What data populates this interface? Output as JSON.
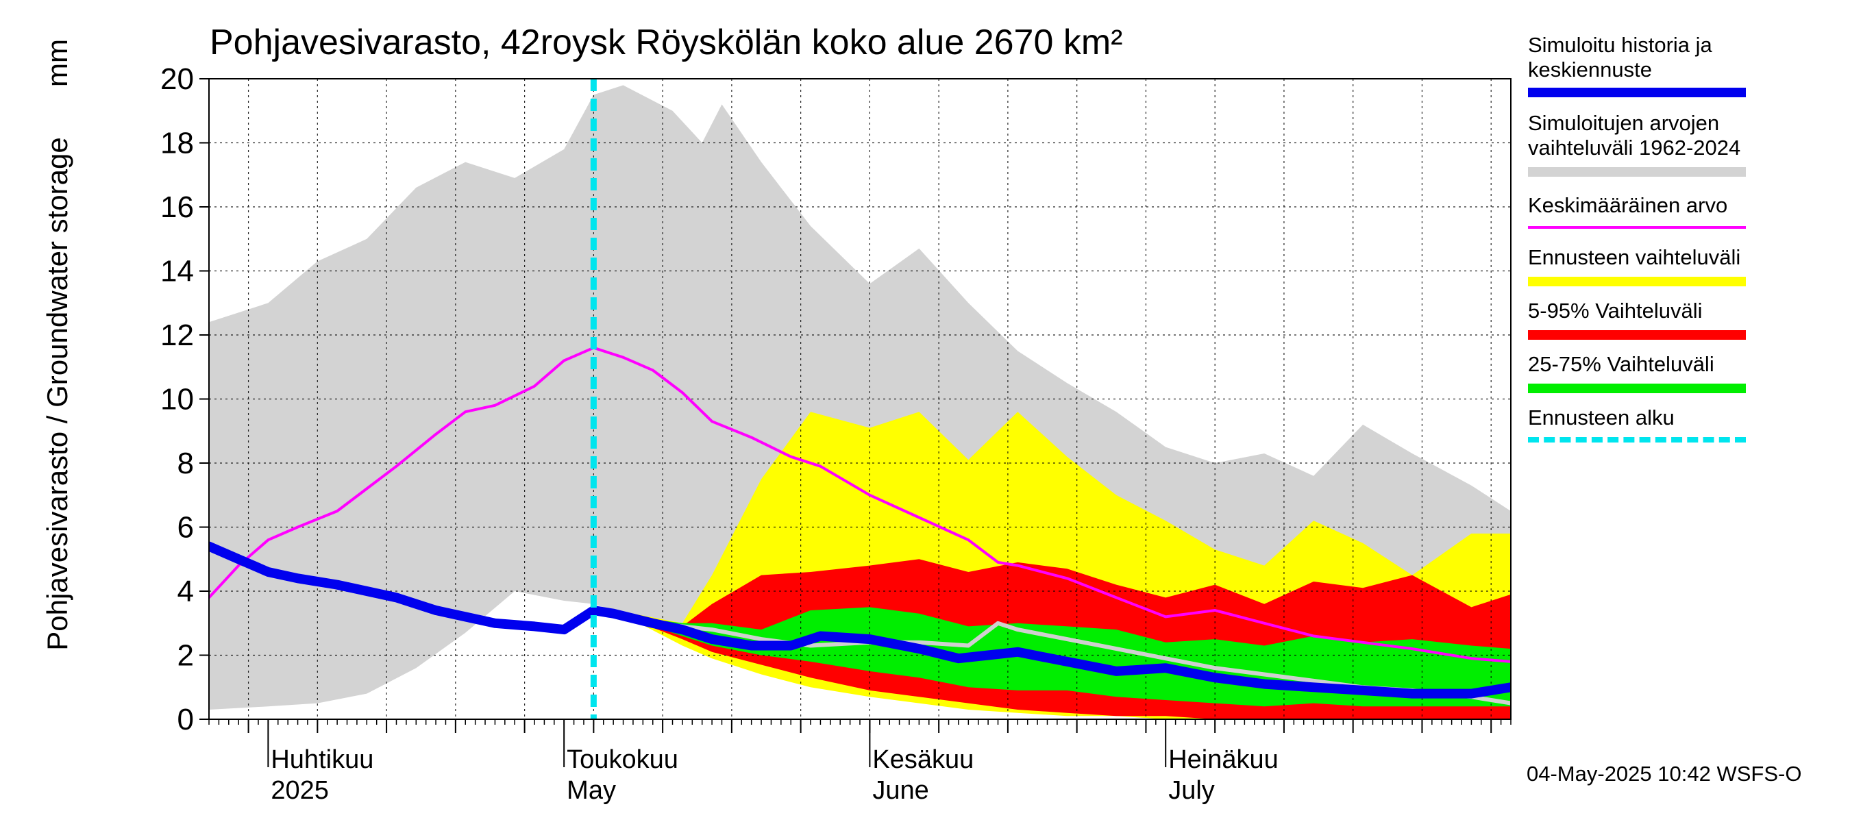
{
  "chart_data": {
    "type": "area",
    "title": "Pohjavesivarasto, 42roysk Röyskölän koko alue 2670 km²",
    "ylabel": "Pohjavesivarasto / Groundwater storage",
    "yunit": "mm",
    "ylim": [
      0,
      20
    ],
    "yticks": [
      0,
      2,
      4,
      6,
      8,
      10,
      12,
      14,
      16,
      18,
      20
    ],
    "xlim": [
      "2025-03-26",
      "2025-08-05"
    ],
    "grid": true,
    "x_month_labels": [
      {
        "date": "2025-04-01",
        "line1": "Huhtikuu",
        "line2": "2025"
      },
      {
        "date": "2025-05-01",
        "line1": "Toukokuu",
        "line2": "May"
      },
      {
        "date": "2025-06-01",
        "line1": "Kesäkuu",
        "line2": "June"
      },
      {
        "date": "2025-07-01",
        "line1": "Heinäkuu",
        "line2": "July"
      }
    ],
    "forecast_start": "2025-05-04",
    "series": [
      {
        "name": "Simuloitujen arvojen vaihteluväli 1962-2024",
        "color": "#d3d3d3",
        "kind": "band",
        "x": [
          "2025-03-26",
          "2025-04-01",
          "2025-04-06",
          "2025-04-11",
          "2025-04-16",
          "2025-04-21",
          "2025-04-26",
          "2025-05-01",
          "2025-05-04",
          "2025-05-07",
          "2025-05-12",
          "2025-05-15",
          "2025-05-17",
          "2025-05-21",
          "2025-05-26",
          "2025-06-01",
          "2025-06-06",
          "2025-06-11",
          "2025-06-16",
          "2025-06-21",
          "2025-06-26",
          "2025-07-01",
          "2025-07-06",
          "2025-07-11",
          "2025-07-16",
          "2025-07-21",
          "2025-07-26",
          "2025-08-01",
          "2025-08-05"
        ],
        "upper": [
          12.4,
          13.0,
          14.3,
          15.0,
          16.6,
          17.4,
          16.9,
          17.8,
          19.5,
          19.8,
          19.0,
          18.0,
          19.2,
          17.4,
          15.4,
          13.6,
          14.7,
          13.0,
          11.5,
          10.5,
          9.6,
          8.5,
          8.0,
          8.3,
          7.6,
          9.2,
          8.3,
          7.3,
          6.5
        ],
        "lower": [
          0.3,
          0.4,
          0.5,
          0.8,
          1.6,
          2.7,
          4.0,
          3.7,
          3.6,
          3.3,
          3.0,
          3.0,
          2.6,
          2.3,
          2.1,
          1.6,
          1.2,
          0.9,
          0.7,
          0.5,
          0.3,
          0.2,
          0.1,
          0.1,
          0.1,
          0.1,
          0.1,
          0.1,
          0.1
        ]
      },
      {
        "name": "Ennusteen vaihteluväli",
        "color": "#ffff00",
        "kind": "band",
        "x": [
          "2025-05-04",
          "2025-05-08",
          "2025-05-13",
          "2025-05-16",
          "2025-05-21",
          "2025-05-26",
          "2025-06-01",
          "2025-06-06",
          "2025-06-11",
          "2025-06-16",
          "2025-06-21",
          "2025-06-26",
          "2025-07-01",
          "2025-07-06",
          "2025-07-11",
          "2025-07-16",
          "2025-07-21",
          "2025-07-26",
          "2025-08-01",
          "2025-08-05"
        ],
        "upper": [
          3.4,
          3.3,
          3.0,
          4.5,
          7.5,
          9.6,
          9.1,
          9.6,
          8.1,
          9.6,
          8.2,
          7.0,
          6.2,
          5.3,
          4.8,
          6.2,
          5.5,
          4.5,
          5.8,
          5.8
        ],
        "lower": [
          3.4,
          3.1,
          2.3,
          1.9,
          1.4,
          1.0,
          0.7,
          0.5,
          0.3,
          0.2,
          0.1,
          0.1,
          0.0,
          0.0,
          0.0,
          0.0,
          0.0,
          0.0,
          0.0,
          0.0
        ]
      },
      {
        "name": "5-95% Vaihteluväli",
        "color": "#ff0000",
        "kind": "band",
        "x": [
          "2025-05-04",
          "2025-05-08",
          "2025-05-13",
          "2025-05-16",
          "2025-05-21",
          "2025-05-26",
          "2025-06-01",
          "2025-06-06",
          "2025-06-11",
          "2025-06-16",
          "2025-06-21",
          "2025-06-26",
          "2025-07-01",
          "2025-07-06",
          "2025-07-11",
          "2025-07-16",
          "2025-07-21",
          "2025-07-26",
          "2025-08-01",
          "2025-08-05"
        ],
        "upper": [
          3.4,
          3.2,
          2.9,
          3.6,
          4.5,
          4.6,
          4.8,
          5.0,
          4.6,
          4.9,
          4.7,
          4.2,
          3.8,
          4.2,
          3.6,
          4.3,
          4.1,
          4.5,
          3.5,
          3.9
        ],
        "lower": [
          3.4,
          3.1,
          2.5,
          2.1,
          1.7,
          1.3,
          0.9,
          0.7,
          0.5,
          0.3,
          0.2,
          0.1,
          0.1,
          0.0,
          0.0,
          0.0,
          0.0,
          0.0,
          0.0,
          0.0
        ]
      },
      {
        "name": "25-75% Vaihteluväli",
        "color": "#00ee00",
        "kind": "band",
        "x": [
          "2025-05-04",
          "2025-05-08",
          "2025-05-13",
          "2025-05-16",
          "2025-05-21",
          "2025-05-26",
          "2025-06-01",
          "2025-06-06",
          "2025-06-11",
          "2025-06-16",
          "2025-06-21",
          "2025-06-26",
          "2025-07-01",
          "2025-07-06",
          "2025-07-11",
          "2025-07-16",
          "2025-07-21",
          "2025-07-26",
          "2025-08-01",
          "2025-08-05"
        ],
        "upper": [
          3.4,
          3.2,
          3.0,
          3.0,
          2.8,
          3.4,
          3.5,
          3.3,
          2.9,
          3.0,
          2.9,
          2.8,
          2.4,
          2.5,
          2.3,
          2.6,
          2.4,
          2.5,
          2.3,
          2.2
        ],
        "lower": [
          3.4,
          3.1,
          2.6,
          2.3,
          2.0,
          1.8,
          1.5,
          1.3,
          1.0,
          0.9,
          0.9,
          0.7,
          0.6,
          0.5,
          0.4,
          0.5,
          0.4,
          0.4,
          0.4,
          0.4
        ]
      },
      {
        "name": "Median / ennusteen keskiarvo",
        "color": "#d0d0d0",
        "kind": "line",
        "x": [
          "2025-05-04",
          "2025-05-08",
          "2025-05-13",
          "2025-05-16",
          "2025-05-21",
          "2025-05-26",
          "2025-06-01",
          "2025-06-06",
          "2025-06-11",
          "2025-06-14",
          "2025-06-16",
          "2025-06-21",
          "2025-06-26",
          "2025-07-01",
          "2025-07-06",
          "2025-07-11",
          "2025-07-16",
          "2025-07-21",
          "2025-07-26",
          "2025-08-01",
          "2025-08-05"
        ],
        "y": [
          3.4,
          3.1,
          2.9,
          2.8,
          2.5,
          2.3,
          2.4,
          2.4,
          2.3,
          3.0,
          2.8,
          2.5,
          2.2,
          1.9,
          1.6,
          1.4,
          1.2,
          1.0,
          0.9,
          0.7,
          0.5
        ]
      },
      {
        "name": "Keskimääräinen arvo",
        "color": "#ff00ff",
        "kind": "line",
        "x": [
          "2025-03-26",
          "2025-03-29",
          "2025-04-01",
          "2025-04-04",
          "2025-04-08",
          "2025-04-11",
          "2025-04-14",
          "2025-04-18",
          "2025-04-21",
          "2025-04-24",
          "2025-04-28",
          "2025-05-01",
          "2025-05-04",
          "2025-05-07",
          "2025-05-10",
          "2025-05-13",
          "2025-05-16",
          "2025-05-20",
          "2025-05-24",
          "2025-05-27",
          "2025-06-01",
          "2025-06-06",
          "2025-06-11",
          "2025-06-14",
          "2025-06-16",
          "2025-06-21",
          "2025-06-26",
          "2025-07-01",
          "2025-07-06",
          "2025-07-11",
          "2025-07-16",
          "2025-07-21",
          "2025-07-26",
          "2025-08-01",
          "2025-08-05"
        ],
        "y": [
          3.8,
          4.8,
          5.6,
          6.0,
          6.5,
          7.2,
          7.9,
          8.9,
          9.6,
          9.8,
          10.4,
          11.2,
          11.6,
          11.3,
          10.9,
          10.2,
          9.3,
          8.8,
          8.2,
          7.9,
          7.0,
          6.3,
          5.6,
          4.9,
          4.8,
          4.4,
          3.8,
          3.2,
          3.4,
          3.0,
          2.6,
          2.4,
          2.2,
          1.9,
          1.8
        ]
      },
      {
        "name": "Simuloitu historia ja keskiennuste",
        "color": "#0000ee",
        "kind": "line",
        "x": [
          "2025-03-26",
          "2025-03-29",
          "2025-04-01",
          "2025-04-04",
          "2025-04-08",
          "2025-04-11",
          "2025-04-14",
          "2025-04-18",
          "2025-04-21",
          "2025-04-24",
          "2025-04-28",
          "2025-05-01",
          "2025-05-03",
          "2025-05-04",
          "2025-05-06",
          "2025-05-10",
          "2025-05-13",
          "2025-05-16",
          "2025-05-20",
          "2025-05-24",
          "2025-05-27",
          "2025-06-01",
          "2025-06-06",
          "2025-06-10",
          "2025-06-13",
          "2025-06-16",
          "2025-06-21",
          "2025-06-26",
          "2025-07-01",
          "2025-07-06",
          "2025-07-11",
          "2025-07-16",
          "2025-07-21",
          "2025-07-26",
          "2025-08-01",
          "2025-08-05"
        ],
        "y": [
          5.4,
          5.0,
          4.6,
          4.4,
          4.2,
          4.0,
          3.8,
          3.4,
          3.2,
          3.0,
          2.9,
          2.8,
          3.2,
          3.4,
          3.3,
          3.0,
          2.8,
          2.5,
          2.3,
          2.3,
          2.6,
          2.5,
          2.2,
          1.9,
          2.0,
          2.1,
          1.8,
          1.5,
          1.6,
          1.3,
          1.1,
          1.0,
          0.9,
          0.8,
          0.8,
          1.0
        ]
      }
    ]
  },
  "legend": {
    "items": [
      {
        "label": "Simuloitu historia ja\nkeskiennuste",
        "color": "#0000ee",
        "style": "thick"
      },
      {
        "label": "Simuloitujen arvojen\nvaihteluväli 1962-2024",
        "color": "#d3d3d3",
        "style": "thick"
      },
      {
        "label": "Keskimääräinen arvo",
        "color": "#ff00ff",
        "style": "thin"
      },
      {
        "label": "Ennusteen vaihteluväli",
        "color": "#ffff00",
        "style": "thick"
      },
      {
        "label": "5-95% Vaihteluväli",
        "color": "#ff0000",
        "style": "thick"
      },
      {
        "label": "25-75% Vaihteluväli",
        "color": "#00ee00",
        "style": "thick"
      },
      {
        "label": "Ennusteen alku",
        "color": "#00e5ee",
        "style": "dashed"
      }
    ]
  },
  "footer": {
    "timestamp": "04-May-2025 10:42 WSFS-O"
  }
}
